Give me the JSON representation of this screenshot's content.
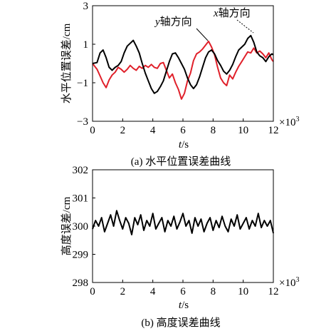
{
  "chart_data": [
    {
      "type": "line",
      "caption": "(a) 水平位置误差曲线",
      "xlabel_italic": "t",
      "xlabel_unit": "/s",
      "ylabel": "水平位置误差/cm",
      "x_multiplier": "×10",
      "x_multiplier_exp": "3",
      "xlim": [
        0,
        12
      ],
      "ylim": [
        -3,
        3
      ],
      "xticks": [
        "0",
        "2",
        "4",
        "6",
        "8",
        "10",
        "12"
      ],
      "yticks": [
        "−3",
        "−1",
        "1",
        "3"
      ],
      "ytick_values": [
        -3,
        -1,
        1,
        3
      ],
      "annotations": [
        {
          "italic": "y",
          "text": "轴方向",
          "series": "y"
        },
        {
          "italic": "x",
          "text": "轴方向",
          "series": "x"
        }
      ],
      "series": [
        {
          "key": "x",
          "color": "#000000",
          "x": [
            0,
            0.3,
            0.5,
            0.7,
            0.9,
            1.1,
            1.3,
            1.5,
            1.7,
            1.9,
            2.1,
            2.3,
            2.5,
            2.7,
            2.9,
            3.1,
            3.3,
            3.5,
            3.7,
            3.9,
            4.1,
            4.3,
            4.5,
            4.7,
            4.9,
            5.1,
            5.3,
            5.5,
            5.7,
            5.9,
            6.1,
            6.3,
            6.5,
            6.7,
            6.9,
            7.1,
            7.3,
            7.5,
            7.7,
            7.9,
            8.1,
            8.3,
            8.5,
            8.7,
            8.9,
            9.1,
            9.3,
            9.5,
            9.7,
            9.9,
            10.1,
            10.3,
            10.5,
            10.7,
            10.9,
            11.1,
            11.3,
            11.5,
            11.7,
            11.9,
            12
          ],
          "values": [
            0.0,
            0.05,
            0.55,
            0.7,
            0.3,
            -0.2,
            -0.35,
            -0.2,
            -0.1,
            0.1,
            0.55,
            0.9,
            1.05,
            1.2,
            0.9,
            0.55,
            0.0,
            -0.5,
            -0.9,
            -1.3,
            -1.55,
            -1.45,
            -1.2,
            -0.9,
            -0.4,
            0.1,
            0.5,
            0.55,
            0.3,
            0.0,
            -0.3,
            -0.75,
            -1.1,
            -1.3,
            -1.1,
            -0.7,
            -0.2,
            0.3,
            0.6,
            0.7,
            0.5,
            0.15,
            -0.1,
            -0.4,
            -0.55,
            -0.35,
            -0.05,
            0.35,
            0.7,
            0.85,
            1.0,
            1.3,
            1.45,
            1.1,
            0.6,
            0.4,
            0.3,
            0.1,
            0.35,
            0.5,
            0.45
          ]
        },
        {
          "key": "y",
          "color": "#e0202a",
          "x": [
            0,
            0.3,
            0.5,
            0.7,
            0.9,
            1.1,
            1.3,
            1.5,
            1.7,
            1.9,
            2.1,
            2.3,
            2.5,
            2.7,
            2.9,
            3.1,
            3.3,
            3.5,
            3.7,
            3.9,
            4.1,
            4.3,
            4.5,
            4.7,
            4.9,
            5.1,
            5.3,
            5.5,
            5.7,
            5.9,
            6.1,
            6.3,
            6.5,
            6.7,
            6.9,
            7.1,
            7.3,
            7.5,
            7.7,
            7.9,
            8.1,
            8.3,
            8.5,
            8.7,
            8.9,
            9.1,
            9.3,
            9.5,
            9.7,
            9.9,
            10.1,
            10.3,
            10.5,
            10.7,
            10.9,
            11.1,
            11.3,
            11.5,
            11.7,
            11.9,
            12
          ],
          "values": [
            0.0,
            -0.3,
            -0.65,
            -1.0,
            -1.25,
            -0.85,
            -0.6,
            -0.45,
            -0.2,
            -0.3,
            -0.45,
            -0.3,
            -0.1,
            -0.25,
            -0.35,
            -0.15,
            -0.25,
            -0.1,
            -0.2,
            -0.05,
            -0.2,
            -0.25,
            0.0,
            0.05,
            -0.35,
            -0.75,
            -0.55,
            -1.0,
            -1.35,
            -1.85,
            -1.55,
            -0.9,
            -0.5,
            0.15,
            0.5,
            0.6,
            0.75,
            0.95,
            1.15,
            0.85,
            0.45,
            -0.2,
            -0.75,
            -1.0,
            -1.15,
            -0.6,
            -0.8,
            -0.45,
            -0.15,
            0.1,
            0.35,
            0.6,
            0.55,
            0.8,
            0.55,
            0.65,
            0.5,
            0.3,
            0.55,
            0.2,
            0.1
          ]
        }
      ]
    },
    {
      "type": "line",
      "caption": "(b) 高度误差曲线",
      "xlabel_italic": "t",
      "xlabel_unit": "/s",
      "ylabel": "高度误差/cm",
      "x_multiplier": "×10",
      "x_multiplier_exp": "3",
      "xlim": [
        0,
        12
      ],
      "ylim": [
        298,
        302
      ],
      "xticks": [
        "0",
        "2",
        "4",
        "6",
        "8",
        "10",
        "12"
      ],
      "yticks": [
        "298",
        "299",
        "300",
        "301",
        "302"
      ],
      "ytick_values": [
        298,
        299,
        300,
        301,
        302
      ],
      "series": [
        {
          "key": "z",
          "color": "#000000",
          "x": [
            0,
            0.2,
            0.4,
            0.6,
            0.8,
            1.0,
            1.2,
            1.4,
            1.6,
            1.8,
            2.0,
            2.2,
            2.4,
            2.6,
            2.8,
            3.0,
            3.2,
            3.4,
            3.6,
            3.8,
            4.0,
            4.2,
            4.4,
            4.6,
            4.8,
            5.0,
            5.2,
            5.4,
            5.6,
            5.8,
            6.0,
            6.2,
            6.4,
            6.6,
            6.8,
            7.0,
            7.2,
            7.4,
            7.6,
            7.8,
            8.0,
            8.2,
            8.4,
            8.6,
            8.8,
            9.0,
            9.2,
            9.4,
            9.6,
            9.8,
            10.0,
            10.2,
            10.4,
            10.6,
            10.8,
            11.0,
            11.2,
            11.4,
            11.6,
            11.8,
            12
          ],
          "values": [
            299.9,
            300.2,
            300.0,
            300.3,
            299.8,
            300.1,
            300.4,
            300.0,
            300.55,
            300.2,
            299.9,
            300.3,
            300.1,
            299.7,
            300.3,
            300.05,
            300.4,
            299.85,
            300.2,
            300.0,
            300.45,
            299.9,
            300.1,
            300.3,
            299.8,
            300.2,
            300.0,
            300.35,
            299.9,
            300.15,
            300.45,
            300.0,
            300.2,
            299.75,
            300.3,
            300.0,
            300.25,
            299.8,
            300.1,
            300.3,
            299.85,
            300.2,
            299.95,
            300.35,
            300.0,
            299.8,
            300.25,
            300.0,
            300.4,
            299.9,
            300.1,
            300.3,
            299.9,
            300.2,
            300.0,
            300.45,
            299.95,
            300.2,
            300.0,
            300.2,
            299.75
          ]
        }
      ]
    }
  ]
}
